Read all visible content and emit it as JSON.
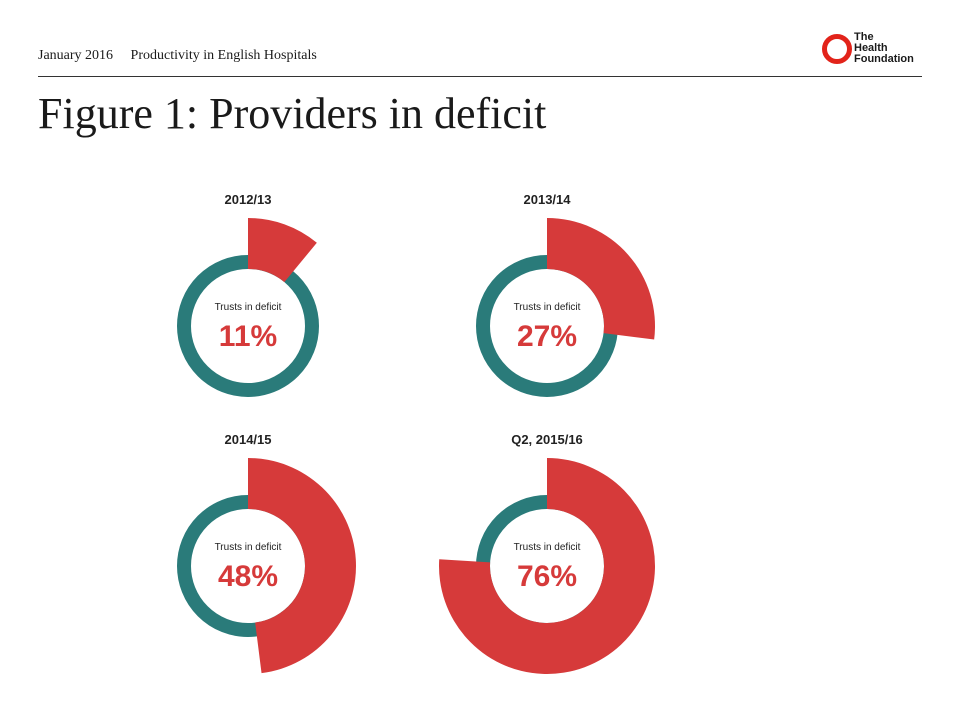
{
  "header": {
    "date": "January 2016",
    "report": "Productivity in English Hospitals"
  },
  "logo": {
    "lines": [
      "The",
      "Health",
      "Foundation"
    ],
    "icon": "red-ring-logo-icon",
    "color": "#e2231a"
  },
  "title": "Figure 1: Providers in deficit",
  "colors": {
    "deficit": "#d63a3a",
    "ring": "#2a7b7a"
  },
  "chart_data": [
    {
      "type": "pie",
      "title": "2012/13",
      "inner_label": "Trusts in deficit",
      "value_label": "11%",
      "value": 11
    },
    {
      "type": "pie",
      "title": "2013/14",
      "inner_label": "Trusts in deficit",
      "value_label": "27%",
      "value": 27
    },
    {
      "type": "pie",
      "title": "2014/15",
      "inner_label": "Trusts in deficit",
      "value_label": "48%",
      "value": 48
    },
    {
      "type": "pie",
      "title": "Q2, 2015/16",
      "inner_label": "Trusts in deficit",
      "value_label": "76%",
      "value": 76
    }
  ]
}
